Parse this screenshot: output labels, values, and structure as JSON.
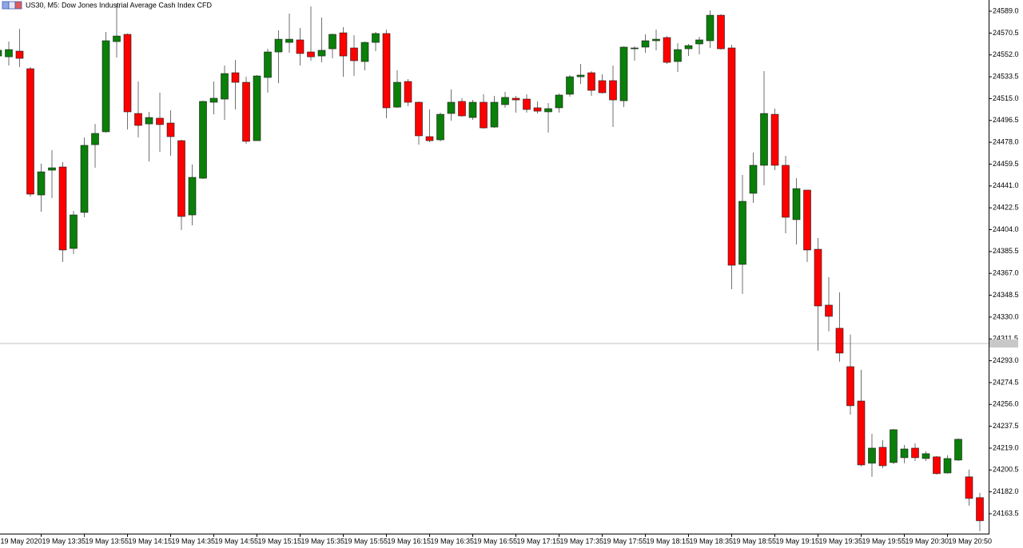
{
  "chart_data": {
    "type": "candlestick",
    "title": "US30, M5:  Dow Jones Industrial Average Cash Index CFD",
    "categories": [
      "19 May 2020",
      null,
      null,
      null,
      "19 May 13:35",
      null,
      null,
      null,
      "19 May 13:55",
      null,
      null,
      null,
      "19 May 14:15",
      null,
      null,
      null,
      "19 May 14:35",
      null,
      null,
      null,
      "19 May 14:55",
      null,
      null,
      null,
      "19 May 15:15",
      null,
      null,
      null,
      "19 May 15:35",
      null,
      null,
      null,
      "19 May 15:55",
      null,
      null,
      null,
      "19 May 16:15",
      null,
      null,
      null,
      "19 May 16:35",
      null,
      null,
      null,
      "19 May 16:55",
      null,
      null,
      null,
      "19 May 17:15",
      null,
      null,
      null,
      "19 May 17:35",
      null,
      null,
      null,
      "19 May 17:55",
      null,
      null,
      null,
      "19 May 18:15",
      null,
      null,
      null,
      "19 May 18:35",
      null,
      null,
      null,
      "19 May 18:55",
      null,
      null,
      null,
      "19 May 19:15",
      null,
      null,
      null,
      "19 May 19:35",
      null,
      null,
      null,
      "19 May 19:55",
      null,
      null,
      null,
      "19 May 20:30",
      null,
      null,
      null,
      "19 May 20:50",
      null,
      null,
      null
    ],
    "open": [
      24551.1,
      24550.4,
      24555.2,
      24540.3,
      24433.4,
      24454.4,
      24457.1,
      24388.1,
      24418.6,
      24476.0,
      24486.9,
      24563.3,
      24569.4,
      24502.4,
      24493.6,
      24498.4,
      24494.3,
      24479.4,
      24416.5,
      24447.6,
      24511.9,
      24514.6,
      24536.9,
      24528.8,
      24479.4,
      24532.9,
      24554.5,
      24562.6,
      24564.7,
      24554.5,
      24551.1,
      24557.2,
      24570.7,
      24557.9,
      24546.4,
      24562.6,
      24570.1,
      24507.8,
      24529.5,
      24511.9,
      24482.8,
      24480.1,
      24502.4,
      24512.6,
      24499.0,
      24511.9,
      24490.9,
      24509.9,
      24515.3,
      24514.6,
      24507.2,
      24503.8,
      24507.2,
      24518.7,
      24533.5,
      24536.9,
      24530.2,
      24530.2,
      24513.2,
      24557.2,
      24558.6,
      24564.0,
      24566.7,
      24546.4,
      24557.2,
      24561.3,
      24564.0,
      24585.6,
      24557.9,
      24374.6,
      24434.8,
      24458.5,
      24501.7,
      24458.5,
      24412.5,
      24437.5,
      24387.4,
      24340.1,
      24320.5,
      24288.0,
      24258.9,
      24206.2,
      24219.7,
      24206.8,
      24210.9,
      24219.0,
      24210.2,
      24211.6,
      24198.0,
      24208.9,
      24194.7,
      24177.1
    ],
    "high": [
      24559.2,
      24563.3,
      24574.1,
      24541.7,
      24459.8,
      24471.3,
      24461.2,
      24419.9,
      24482.1,
      24493.6,
      24571.4,
      24595.1,
      24570.1,
      24529.5,
      24503.8,
      24520.0,
      24505.1,
      24480.1,
      24459.1,
      24513.2,
      24529.5,
      24543.0,
      24547.7,
      24533.5,
      24534.9,
      24557.2,
      24572.8,
      24587.0,
      24574.8,
      24593.1,
      24583.6,
      24570.1,
      24575.5,
      24568.7,
      24563.3,
      24571.4,
      24573.4,
      24539.0,
      24531.5,
      24512.6,
      24505.8,
      24503.1,
      24522.7,
      24515.3,
      24513.9,
      24518.7,
      24517.3,
      24520.7,
      24517.3,
      24518.7,
      24512.6,
      24511.2,
      24519.3,
      24534.9,
      24544.4,
      24538.3,
      24535.6,
      24543.0,
      24559.2,
      24559.2,
      24569.4,
      24573.4,
      24568.0,
      24561.9,
      24561.3,
      24567.4,
      24589.7,
      24586.3,
      24560.6,
      24450.3,
      24469.3,
      24538.3,
      24506.5,
      24466.6,
      24447.6,
      24437.5,
      24396.9,
      24363.8,
      24350.9,
      24315.1,
      24285.3,
      24231.2,
      24225.8,
      24235.2,
      24221.7,
      24223.1,
      24216.3,
      24212.3,
      24212.9,
      24227.1,
      24200.8,
      24181.1
    ],
    "low": [
      24547.7,
      24543.0,
      24541.7,
      24432.1,
      24419.2,
      24430.7,
      24376.6,
      24383.4,
      24414.5,
      24456.4,
      24486.2,
      24549.8,
      24488.9,
      24482.1,
      24461.8,
      24470.0,
      24466.6,
      24403.7,
      24407.7,
      24447.0,
      24501.7,
      24497.0,
      24505.8,
      24476.7,
      24479.4,
      24520.0,
      24528.1,
      24553.8,
      24543.0,
      24547.1,
      24545.7,
      24549.1,
      24533.5,
      24534.2,
      24539.0,
      24555.2,
      24498.4,
      24507.2,
      24508.5,
      24476.0,
      24478.1,
      24478.8,
      24496.3,
      24499.7,
      24497.0,
      24489.6,
      24490.2,
      24507.2,
      24503.1,
      24503.1,
      24502.4,
      24486.2,
      24503.1,
      24516.6,
      24527.4,
      24517.3,
      24519.3,
      24490.9,
      24507.8,
      24547.1,
      24553.8,
      24555.9,
      24544.4,
      24537.6,
      24551.1,
      24552.5,
      24557.9,
      24556.5,
      24353.6,
      24349.6,
      24426.7,
      24441.6,
      24454.4,
      24401.0,
      24391.5,
      24376.6,
      24301.5,
      24317.8,
      24292.1,
      24247.4,
      24203.5,
      24194.7,
      24202.1,
      24205.5,
      24206.2,
      24208.2,
      24208.2,
      24196.7,
      24197.4,
      24208.2,
      24170.3,
      24148.7
    ],
    "close": [
      24555.9,
      24556.5,
      24549.1,
      24434.1,
      24453.0,
      24456.4,
      24386.8,
      24416.5,
      24475.4,
      24485.5,
      24564.0,
      24568.0,
      24503.8,
      24492.3,
      24499.0,
      24493.0,
      24482.8,
      24415.2,
      24448.3,
      24512.6,
      24515.3,
      24536.2,
      24528.8,
      24478.8,
      24534.2,
      24554.5,
      24565.3,
      24565.3,
      24553.2,
      24550.4,
      24555.9,
      24569.4,
      24551.1,
      24547.1,
      24562.6,
      24570.1,
      24507.2,
      24528.8,
      24511.9,
      24483.5,
      24479.4,
      24501.7,
      24511.9,
      24500.4,
      24511.9,
      24490.2,
      24511.9,
      24516.0,
      24513.9,
      24505.8,
      24504.4,
      24506.5,
      24518.0,
      24533.5,
      24534.9,
      24522.0,
      24520.0,
      24513.9,
      24558.6,
      24557.9,
      24564.0,
      24565.3,
      24545.7,
      24556.5,
      24559.9,
      24564.7,
      24585.6,
      24557.2,
      24373.9,
      24428.0,
      24458.5,
      24502.4,
      24458.5,
      24414.5,
      24438.8,
      24386.8,
      24339.4,
      24330.6,
      24299.5,
      24254.9,
      24204.8,
      24219.0,
      24204.1,
      24234.6,
      24218.3,
      24210.9,
      24214.3,
      24197.4,
      24210.2,
      24226.5,
      24176.4,
      24157.5
    ],
    "ylim": [
      24146.6,
      24598.5
    ],
    "yticks": [
      {
        "value": 24589,
        "label": "24589.0"
      },
      24570.5,
      {
        "value": 24552,
        "label": "24552.0"
      },
      24533.5,
      {
        "value": 24515,
        "label": "24515.0"
      },
      24496.5,
      {
        "value": 24478,
        "label": "24478.0"
      },
      24459.5,
      {
        "value": 24441,
        "label": "24441.0"
      },
      24422.5,
      {
        "value": 24404,
        "label": "24404.0"
      },
      24385.5,
      {
        "value": 24367,
        "label": "24367.0"
      },
      24348.5,
      {
        "value": 24330,
        "label": "24330.0"
      },
      24311.5,
      {
        "value": 24293,
        "label": "24293.0"
      },
      24274.5,
      {
        "value": 24256,
        "label": "24256.0"
      },
      24237.5,
      {
        "value": 24219,
        "label": "24219.0"
      },
      24200.5,
      {
        "value": 24182,
        "label": "24182.0"
      },
      24163.5
    ],
    "current_price": 24307.6,
    "up_color": "#0a7f0a",
    "down_color": "#ff0000",
    "wick_color": "#707070",
    "grid": false
  }
}
